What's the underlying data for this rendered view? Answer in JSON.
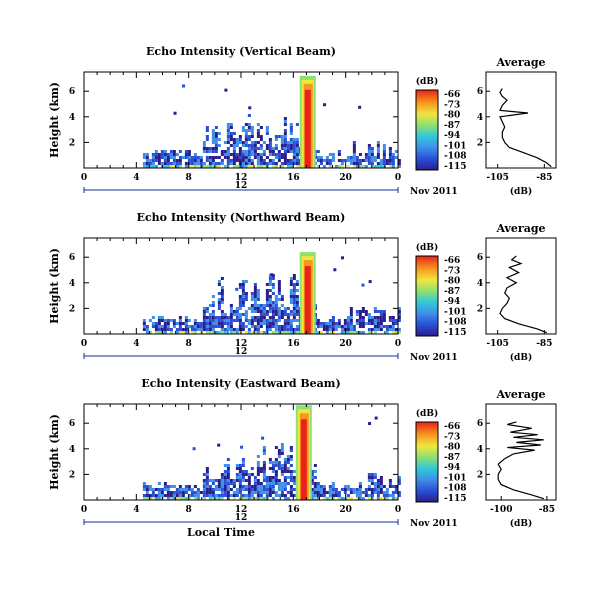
{
  "chart_data": [
    {
      "type": "heatmap",
      "title": "Echo Intensity (Vertical Beam)",
      "ylabel": "Height (km)",
      "x_ticks": [
        "0",
        "4",
        "8",
        "12",
        "16",
        "20",
        "0"
      ],
      "y_ticks": [
        "2",
        "4",
        "6"
      ],
      "xlim": [
        0,
        24
      ],
      "ylim": [
        0,
        7.5
      ],
      "date_label": "Nov 2011",
      "bottom_ruler_label": "12",
      "colorbar": {
        "unit": "(dB)",
        "ticks": [
          "-66",
          "-73",
          "-80",
          "-87",
          "-94",
          "-101",
          "-108",
          "-115"
        ]
      },
      "description_values": {
        "echo_onset_hour": 4.5,
        "echo_end_hour": 24,
        "strong_column_hour": 17.1,
        "strong_column_top_km": 7.2
      },
      "average_profile": {
        "title": "Average",
        "xlabel": "(dB)",
        "x_ticks": [
          "-105",
          "-85"
        ],
        "y_ticks": [
          "2",
          "4",
          "6"
        ],
        "xlim": [
          -110,
          -80
        ],
        "points": [
          [
            -82,
            0.1
          ],
          [
            -84,
            0.4
          ],
          [
            -88,
            0.8
          ],
          [
            -94,
            1.2
          ],
          [
            -100,
            1.6
          ],
          [
            -102,
            2.0
          ],
          [
            -103,
            2.4
          ],
          [
            -103,
            2.8
          ],
          [
            -102,
            3.2
          ],
          [
            -103,
            3.6
          ],
          [
            -104,
            4.0
          ],
          [
            -92,
            4.3
          ],
          [
            -104,
            4.5
          ],
          [
            -103,
            4.9
          ],
          [
            -101,
            5.3
          ],
          [
            -103,
            5.6
          ],
          [
            -104,
            5.9
          ],
          [
            -103,
            6.2
          ]
        ]
      }
    },
    {
      "type": "heatmap",
      "title": "Echo Intensity (Northward Beam)",
      "ylabel": "Height (km)",
      "x_ticks": [
        "0",
        "4",
        "8",
        "12",
        "16",
        "20",
        "0"
      ],
      "y_ticks": [
        "2",
        "4",
        "6"
      ],
      "xlim": [
        0,
        24
      ],
      "ylim": [
        0,
        7.5
      ],
      "date_label": "Nov 2011",
      "bottom_ruler_label": "12",
      "colorbar": {
        "unit": "(dB)",
        "ticks": [
          "-66",
          "-73",
          "-80",
          "-87",
          "-94",
          "-101",
          "-108",
          "-115"
        ]
      },
      "description_values": {
        "echo_onset_hour": 4.5,
        "echo_end_hour": 24,
        "strong_column_hour": 17.1,
        "strong_column_top_km": 6.4
      },
      "average_profile": {
        "title": "Average",
        "xlabel": "(dB)",
        "x_ticks": [
          "-105",
          "-85"
        ],
        "y_ticks": [
          "2",
          "4",
          "6"
        ],
        "xlim": [
          -110,
          -80
        ],
        "points": [
          [
            -84,
            0.1
          ],
          [
            -88,
            0.4
          ],
          [
            -96,
            0.8
          ],
          [
            -102,
            1.2
          ],
          [
            -104,
            1.6
          ],
          [
            -103,
            2.0
          ],
          [
            -101,
            2.4
          ],
          [
            -100,
            2.8
          ],
          [
            -102,
            3.2
          ],
          [
            -101,
            3.6
          ],
          [
            -97,
            4.0
          ],
          [
            -101,
            4.4
          ],
          [
            -96,
            4.8
          ],
          [
            -100,
            5.2
          ],
          [
            -95,
            5.5
          ],
          [
            -99,
            5.8
          ],
          [
            -97,
            6.1
          ]
        ]
      }
    },
    {
      "type": "heatmap",
      "title": "Echo Intensity (Eastward Beam)",
      "ylabel": "Height (km)",
      "x_ticks": [
        "0",
        "4",
        "8",
        "12",
        "16",
        "20",
        "0"
      ],
      "y_ticks": [
        "2",
        "4",
        "6"
      ],
      "xlim": [
        0,
        24
      ],
      "ylim": [
        0,
        7.5
      ],
      "date_label": "Nov 2011",
      "bottom_ruler_label": "12",
      "xlabel": "Local Time",
      "colorbar": {
        "unit": "(dB)",
        "ticks": [
          "-66",
          "-73",
          "-80",
          "-87",
          "-94",
          "-101",
          "-108",
          "-115"
        ]
      },
      "description_values": {
        "echo_onset_hour": 4.5,
        "echo_end_hour": 24,
        "strong_column_hour": 16.8,
        "strong_column_top_km": 7.4
      },
      "average_profile": {
        "title": "Average",
        "xlabel": "(dB)",
        "x_ticks": [
          "-100",
          "-85"
        ],
        "y_ticks": [
          "2",
          "4",
          "6"
        ],
        "xlim": [
          -105,
          -82
        ],
        "points": [
          [
            -86,
            0.1
          ],
          [
            -90,
            0.4
          ],
          [
            -96,
            0.8
          ],
          [
            -100,
            1.2
          ],
          [
            -101,
            1.6
          ],
          [
            -101,
            2.0
          ],
          [
            -100,
            2.4
          ],
          [
            -101,
            2.8
          ],
          [
            -99,
            3.2
          ],
          [
            -96,
            3.6
          ],
          [
            -89,
            3.9
          ],
          [
            -98,
            4.1
          ],
          [
            -87,
            4.3
          ],
          [
            -95,
            4.5
          ],
          [
            -86,
            4.7
          ],
          [
            -96,
            4.9
          ],
          [
            -88,
            5.1
          ],
          [
            -97,
            5.3
          ],
          [
            -90,
            5.6
          ],
          [
            -98,
            5.9
          ],
          [
            -95,
            6.1
          ]
        ]
      }
    }
  ]
}
